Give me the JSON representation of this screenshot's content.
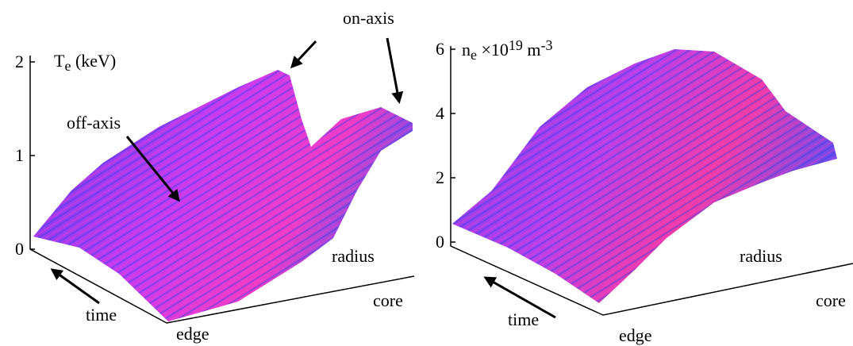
{
  "chart_data": [
    {
      "type": "surface",
      "zlabel": [
        "T",
        "e",
        " (keV)"
      ],
      "zlim": [
        0,
        2
      ],
      "zticks": [
        0,
        1,
        2
      ],
      "annotations": [
        "on-axis",
        "off-axis"
      ],
      "xlabel": "radius",
      "x_end_label": "core",
      "ylabel": "time",
      "y_end_label": "edge"
    },
    {
      "type": "surface",
      "zlabel": [
        "n",
        "e",
        " ×10",
        "19",
        " m",
        "-3"
      ],
      "zlim": [
        0,
        6
      ],
      "zticks": [
        0,
        2,
        4,
        6
      ],
      "annotations": [],
      "xlabel": "radius",
      "x_end_label": "core",
      "ylabel": "time",
      "y_end_label": "edge"
    }
  ]
}
